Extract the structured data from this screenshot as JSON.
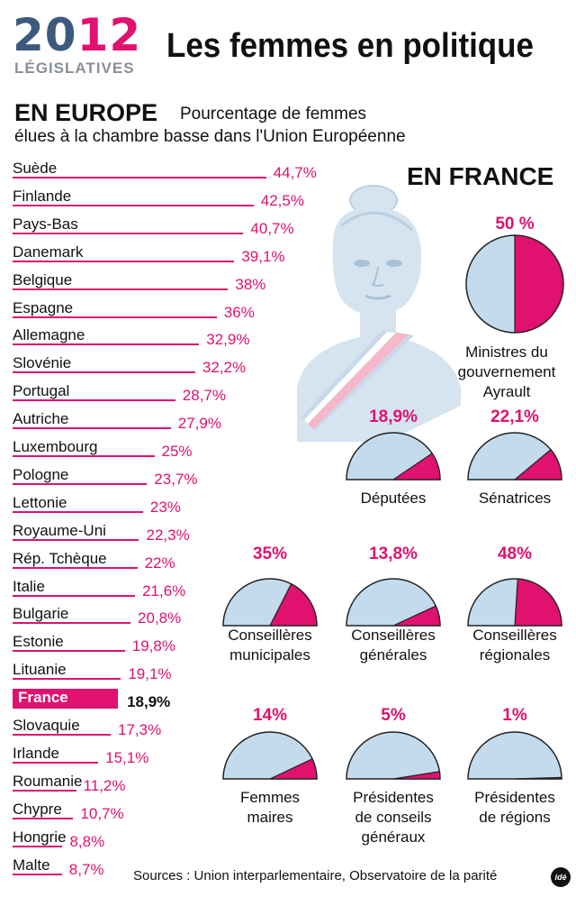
{
  "header": {
    "logo_year_a": "20",
    "logo_year_b": "12",
    "logo_sub": "LÉGISLATIVES",
    "title": "Les femmes en politique"
  },
  "europe": {
    "title": "EN EUROPE",
    "subtitle_line1": "Pourcentage de femmes",
    "subtitle_line2": "élues à la chambre basse dans l'Union Européenne"
  },
  "france": {
    "title": "EN FRANCE"
  },
  "colors": {
    "accent": "#e0116f",
    "pie_base": "#c3dbec",
    "logo_blue": "#3c5a7e"
  },
  "chart_data": [
    {
      "type": "bar",
      "title": "EN EUROPE",
      "highlight": "France",
      "categories": [
        "Suède",
        "Finlande",
        "Pays-Bas",
        "Danemark",
        "Belgique",
        "Espagne",
        "Allemagne",
        "Slovénie",
        "Portugal",
        "Autriche",
        "Luxembourg",
        "Pologne",
        "Lettonie",
        "Royaume-Uni",
        "Rép. Tchèque",
        "Italie",
        "Bulgarie",
        "Estonie",
        "Lituanie",
        "France",
        "Slovaquie",
        "Irlande",
        "Roumanie",
        "Chypre",
        "Hongrie",
        "Malte"
      ],
      "values": [
        44.7,
        42.5,
        40.7,
        39.1,
        38,
        36,
        32.9,
        32.2,
        28.7,
        27.9,
        25,
        23.7,
        23,
        22.3,
        22,
        21.6,
        20.8,
        19.8,
        19.1,
        18.9,
        17.3,
        15.1,
        11.2,
        10.7,
        8.8,
        8.7
      ],
      "labels": [
        "44,7%",
        "42,5%",
        "40,7%",
        "39,1%",
        "38%",
        "36%",
        "32,9%",
        "32,2%",
        "28,7%",
        "27,9%",
        "25%",
        "23,7%",
        "23%",
        "22,3%",
        "22%",
        "21,6%",
        "20,8%",
        "19,8%",
        "19,1%",
        "18,9%",
        "17,3%",
        "15,1%",
        "11,2%",
        "10,7%",
        "8,8%",
        "8,7%"
      ]
    },
    {
      "type": "pie",
      "title": "EN FRANCE",
      "items": [
        {
          "label_lines": [
            "Ministres du",
            "gouvernement Ayrault"
          ],
          "value": 50,
          "value_label": "50 %",
          "shape": "full"
        },
        {
          "label_lines": [
            "Députées"
          ],
          "value": 18.9,
          "value_label": "18,9%",
          "shape": "half"
        },
        {
          "label_lines": [
            "Sénatrices"
          ],
          "value": 22.1,
          "value_label": "22,1%",
          "shape": "half"
        },
        {
          "label_lines": [
            "Conseillères",
            "municipales"
          ],
          "value": 35,
          "value_label": "35%",
          "shape": "half"
        },
        {
          "label_lines": [
            "Conseillères",
            "générales"
          ],
          "value": 13.8,
          "value_label": "13,8%",
          "shape": "half"
        },
        {
          "label_lines": [
            "Conseillères",
            "régionales"
          ],
          "value": 48,
          "value_label": "48%",
          "shape": "half"
        },
        {
          "label_lines": [
            "Femmes",
            "maires"
          ],
          "value": 14,
          "value_label": "14%",
          "shape": "half"
        },
        {
          "label_lines": [
            "Présidentes",
            "de conseils",
            "généraux"
          ],
          "value": 5,
          "value_label": "5%",
          "shape": "half"
        },
        {
          "label_lines": [
            "Présidentes",
            "de régions"
          ],
          "value": 1,
          "value_label": "1%",
          "shape": "half"
        }
      ]
    }
  ],
  "footer": {
    "sources": "Sources : Union interparlementaire, Observatoire de la parité",
    "logo_text": "idé"
  }
}
